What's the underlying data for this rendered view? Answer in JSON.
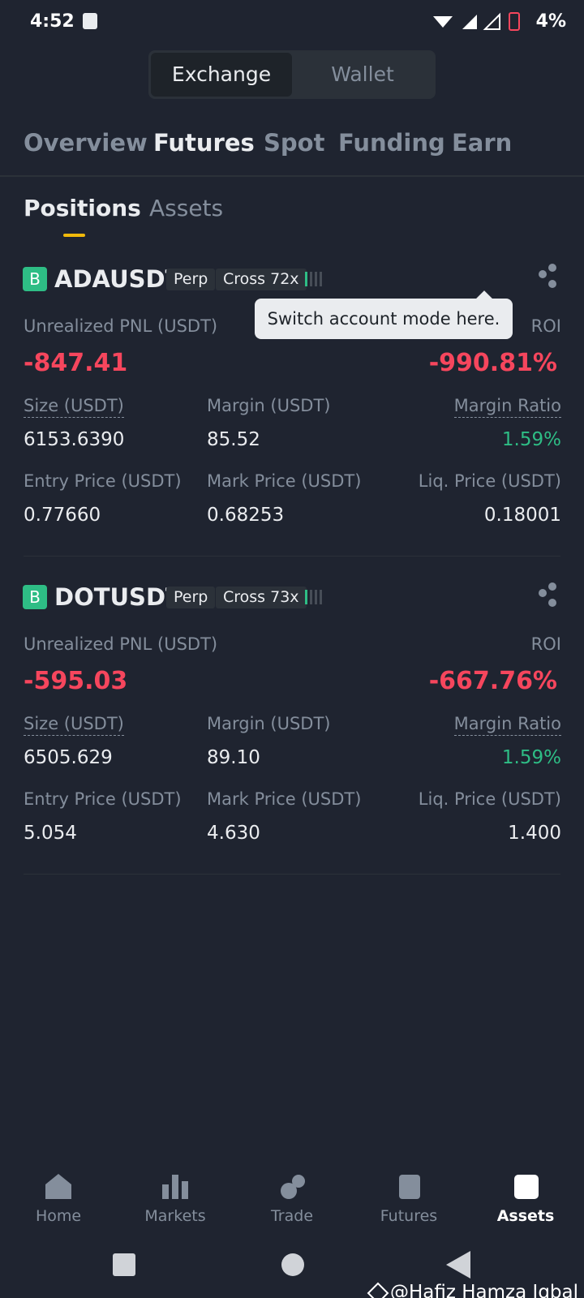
{
  "status_bar": {
    "time": "4:52",
    "battery": "4%"
  },
  "account_toggle": {
    "tabs": [
      "Exchange",
      "Wallet"
    ],
    "active": 0
  },
  "nav_tabs": {
    "tabs": [
      "Overview",
      "Futures",
      "Spot",
      "Funding",
      "Earn"
    ],
    "active": 1
  },
  "sub_tabs": {
    "tabs": [
      "Positions",
      "Assets"
    ],
    "active": 0
  },
  "tooltip": "Switch account mode here.",
  "positions": [
    {
      "badge": "B",
      "symbol": "ADAUSDT",
      "type": "Perp",
      "margin_mode": "Cross 72x",
      "pnl_label": "Unrealized PNL (USDT)",
      "pnl": "-847.41",
      "roi_label": "ROI",
      "roi": "-990.81%",
      "fields": [
        {
          "label": "Size (USDT)",
          "value": "6153.6390"
        },
        {
          "label": "Margin (USDT)",
          "value": "85.52"
        },
        {
          "label": "Margin Ratio",
          "value": "1.59%"
        },
        {
          "label": "Entry Price (USDT)",
          "value": "0.77660"
        },
        {
          "label": "Mark Price (USDT)",
          "value": "0.68253"
        },
        {
          "label": "Liq. Price (USDT)",
          "value": "0.18001"
        }
      ]
    },
    {
      "badge": "B",
      "symbol": "DOTUSDT",
      "type": "Perp",
      "margin_mode": "Cross 73x",
      "pnl_label": "Unrealized PNL (USDT)",
      "pnl": "-595.03",
      "roi_label": "ROI",
      "roi": "-667.76%",
      "fields": [
        {
          "label": "Size (USDT)",
          "value": "6505.629"
        },
        {
          "label": "Margin (USDT)",
          "value": "89.10"
        },
        {
          "label": "Margin Ratio",
          "value": "1.59%"
        },
        {
          "label": "Entry Price (USDT)",
          "value": "5.054"
        },
        {
          "label": "Mark Price (USDT)",
          "value": "4.630"
        },
        {
          "label": "Liq. Price (USDT)",
          "value": "1.400"
        }
      ]
    }
  ],
  "bottom_nav": {
    "items": [
      "Home",
      "Markets",
      "Trade",
      "Futures",
      "Assets"
    ],
    "active": 4
  },
  "watermark": "@Hafiz Hamza Iqbal"
}
